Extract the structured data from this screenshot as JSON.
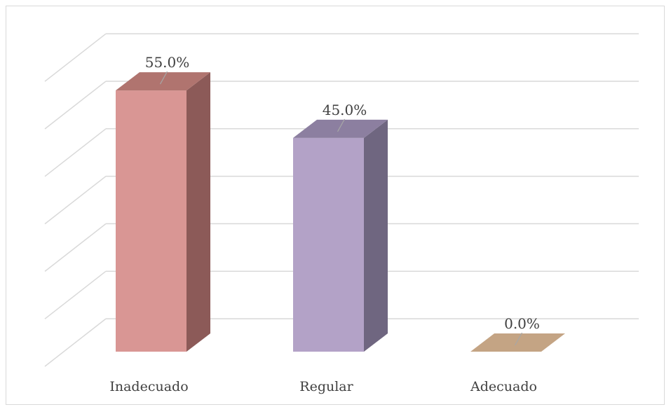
{
  "chart_data": {
    "type": "bar",
    "categories": [
      "Inadecuado",
      "Regular",
      "Adecuado"
    ],
    "values": [
      55.0,
      45.0,
      0.0
    ],
    "data_labels": [
      "55.0%",
      "45.0%",
      "0.0%"
    ],
    "unit": "%",
    "ylim": [
      0,
      60
    ],
    "grid": true,
    "legend": "none",
    "three_d": true,
    "colors": {
      "bar_fronts": [
        "#d99694",
        "#b3a2c7",
        "#c4a484"
      ],
      "bar_tops": [
        "#b0746f",
        "#8c7fa0",
        "#c4a484"
      ],
      "bar_sides": [
        "#8c5a58",
        "#6f6680",
        "#a88c6e"
      ],
      "grid": "#d9d9d9",
      "text": "#404040"
    }
  }
}
